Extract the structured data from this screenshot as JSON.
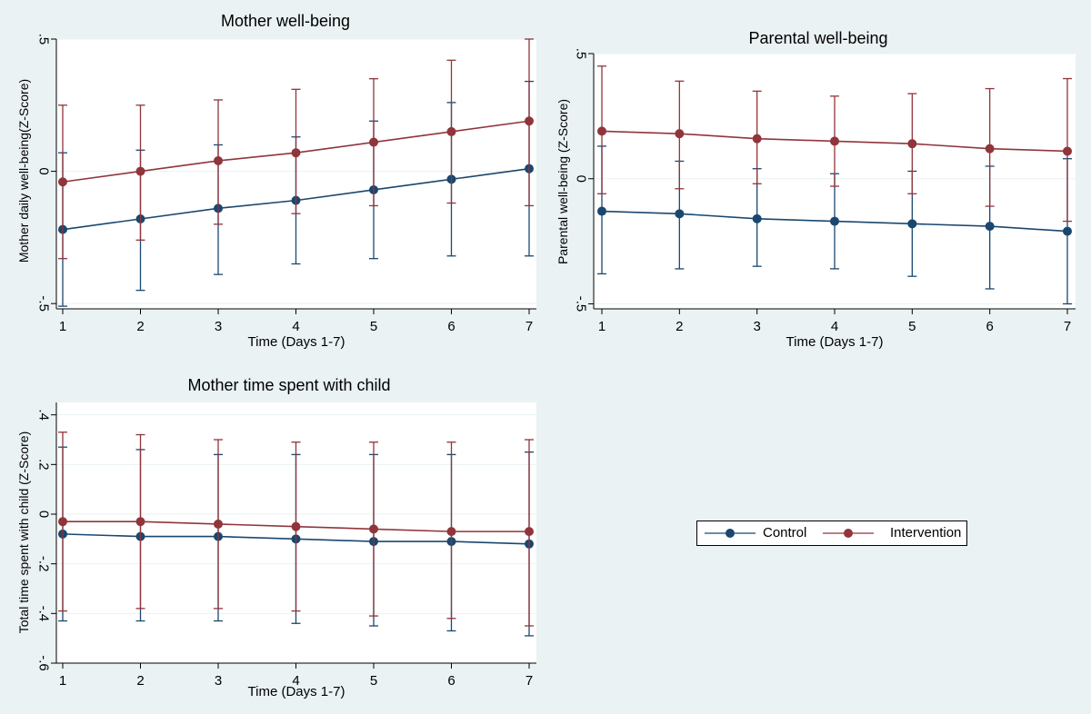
{
  "colors": {
    "control": "#1a476f",
    "intervention": "#90353b",
    "background": "#eaf2f3",
    "plot_background": "#ffffff",
    "grid": "#eaf2f3"
  },
  "legend": {
    "items": [
      {
        "label": "Control",
        "color": "#1a476f"
      },
      {
        "label": "Intervention",
        "color": "#90353b"
      }
    ]
  },
  "chart_data": [
    {
      "type": "line",
      "title": "Mother well-being",
      "xlabel": "Time (Days 1-7)",
      "ylabel": "Mother daily well-being(Z-Score)",
      "x": [
        1,
        2,
        3,
        4,
        5,
        6,
        7
      ],
      "x_tick_labels": [
        "1",
        "2",
        "3",
        "4",
        "5",
        "6",
        "7"
      ],
      "xlim": [
        1,
        7
      ],
      "ylim": [
        -0.52,
        0.5
      ],
      "y_ticks": [
        -0.5,
        0,
        0.5
      ],
      "y_tick_labels": [
        "-.5",
        "0",
        ".5"
      ],
      "grid": true,
      "series": [
        {
          "name": "Control",
          "color": "#1a476f",
          "values": [
            -0.22,
            -0.18,
            -0.14,
            -0.11,
            -0.07,
            -0.03,
            0.01
          ],
          "ci_low": [
            -0.51,
            -0.45,
            -0.39,
            -0.35,
            -0.33,
            -0.32,
            -0.32
          ],
          "ci_high": [
            0.07,
            0.08,
            0.1,
            0.13,
            0.19,
            0.26,
            0.34
          ]
        },
        {
          "name": "Intervention",
          "color": "#90353b",
          "values": [
            -0.04,
            0.0,
            0.04,
            0.07,
            0.11,
            0.15,
            0.19
          ],
          "ci_low": [
            -0.33,
            -0.26,
            -0.2,
            -0.16,
            -0.13,
            -0.12,
            -0.13
          ],
          "ci_high": [
            0.25,
            0.25,
            0.27,
            0.31,
            0.35,
            0.42,
            0.5
          ]
        }
      ]
    },
    {
      "type": "line",
      "title": "Parental well-being",
      "xlabel": "Time (Days 1-7)",
      "ylabel": "Parental well-being (Z-Score)",
      "x": [
        1,
        2,
        3,
        4,
        5,
        6,
        7
      ],
      "x_tick_labels": [
        "1",
        "2",
        "3",
        "4",
        "5",
        "6",
        "7"
      ],
      "xlim": [
        1,
        7
      ],
      "ylim": [
        -0.52,
        0.5
      ],
      "y_ticks": [
        -0.5,
        0,
        0.5
      ],
      "y_tick_labels": [
        "-.5",
        "0",
        ".5"
      ],
      "grid": true,
      "series": [
        {
          "name": "Control",
          "color": "#1a476f",
          "values": [
            -0.13,
            -0.14,
            -0.16,
            -0.17,
            -0.18,
            -0.19,
            -0.21
          ],
          "ci_low": [
            -0.38,
            -0.36,
            -0.35,
            -0.36,
            -0.39,
            -0.44,
            -0.5
          ],
          "ci_high": [
            0.13,
            0.07,
            0.04,
            0.02,
            0.03,
            0.05,
            0.08
          ]
        },
        {
          "name": "Intervention",
          "color": "#90353b",
          "values": [
            0.19,
            0.18,
            0.16,
            0.15,
            0.14,
            0.12,
            0.11
          ],
          "ci_low": [
            -0.06,
            -0.04,
            -0.02,
            -0.03,
            -0.06,
            -0.11,
            -0.17
          ],
          "ci_high": [
            0.45,
            0.39,
            0.35,
            0.33,
            0.34,
            0.36,
            0.4
          ]
        }
      ]
    },
    {
      "type": "line",
      "title": "Mother time spent with child",
      "xlabel": "Time (Days 1-7)",
      "ylabel": "Total time spent with child (Z-Score)",
      "x": [
        1,
        2,
        3,
        4,
        5,
        6,
        7
      ],
      "x_tick_labels": [
        "1",
        "2",
        "3",
        "4",
        "5",
        "6",
        "7"
      ],
      "xlim": [
        1,
        7
      ],
      "ylim": [
        -0.6,
        0.45
      ],
      "y_ticks": [
        -0.6,
        -0.4,
        -0.2,
        0,
        0.2,
        0.4
      ],
      "y_tick_labels": [
        "-.6",
        "-.4",
        "-.2",
        "0",
        ".2",
        ".4"
      ],
      "grid": true,
      "series": [
        {
          "name": "Control",
          "color": "#1a476f",
          "values": [
            -0.08,
            -0.09,
            -0.09,
            -0.1,
            -0.11,
            -0.11,
            -0.12
          ],
          "ci_low": [
            -0.43,
            -0.43,
            -0.43,
            -0.44,
            -0.45,
            -0.47,
            -0.49
          ],
          "ci_high": [
            0.27,
            0.26,
            0.24,
            0.24,
            0.24,
            0.24,
            0.25
          ]
        },
        {
          "name": "Intervention",
          "color": "#90353b",
          "values": [
            -0.03,
            -0.03,
            -0.04,
            -0.05,
            -0.06,
            -0.07,
            -0.07
          ],
          "ci_low": [
            -0.39,
            -0.38,
            -0.38,
            -0.39,
            -0.41,
            -0.42,
            -0.45
          ],
          "ci_high": [
            0.33,
            0.32,
            0.3,
            0.29,
            0.29,
            0.29,
            0.3
          ]
        }
      ]
    }
  ]
}
